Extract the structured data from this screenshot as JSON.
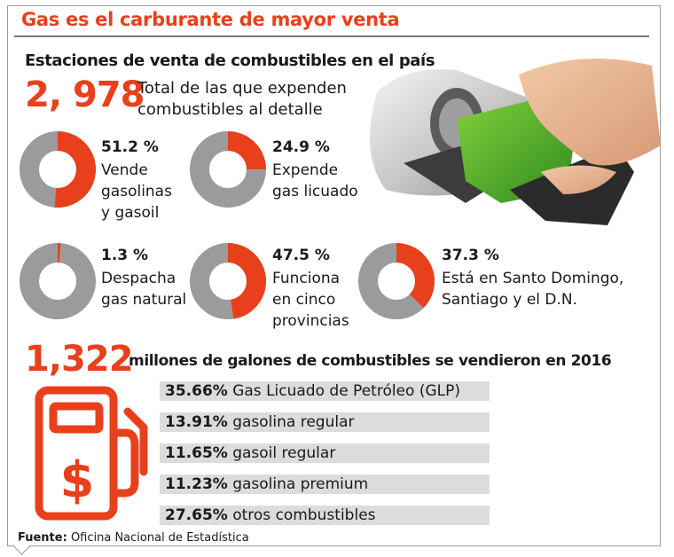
{
  "title": "Gas es el carburante de mayor venta",
  "subtitle": "Estaciones de venta de combustibles en el país",
  "total_stations": {
    "value": "2, 978",
    "text_line1": "Total  de las que expenden",
    "text_line2": "combustibles al detalle"
  },
  "gallons": {
    "value": "1,322",
    "text": "millones de galones de combustibles se vendieron en 2016"
  },
  "source": {
    "key": "Fuente:",
    "value": "Oficina Nacional de Estadística"
  },
  "colors": {
    "accent": "#e8401c",
    "donut_gray": "#9b9b9b",
    "bar_bg": "#dcdcdc"
  },
  "icons": [
    "fuel-nozzle-photo",
    "fuel-pump-icon"
  ],
  "chart_data": [
    {
      "type": "pie",
      "series": [
        {
          "label_value": "51.2 %",
          "value": 51.2,
          "lines": [
            "Vende",
            "gasolinas",
            "y gasoil"
          ]
        },
        {
          "label_value": "24.9 %",
          "value": 24.9,
          "lines": [
            "Expende",
            "gas licuado"
          ]
        },
        {
          "label_value": "1.3 %",
          "value": 1.3,
          "lines": [
            "Despacha",
            "gas natural"
          ]
        },
        {
          "label_value": "47.5 %",
          "value": 47.5,
          "lines": [
            "Funciona",
            "en cinco",
            "provincias"
          ]
        },
        {
          "label_value": "37.3 %",
          "value": 37.3,
          "lines": [
            "Está en Santo Domingo,",
            "Santiago y el D.N."
          ]
        }
      ]
    },
    {
      "type": "bar",
      "categories": [
        "Gas Licuado de Petróleo (GLP)",
        "gasolina regular",
        "gasoil regular",
        "gasolina premium",
        "otros combustibles"
      ],
      "values": [
        35.66,
        13.91,
        11.65,
        11.23,
        27.65
      ],
      "value_labels": [
        "35.66%",
        "13.91%",
        "11.65%",
        "11.23%",
        "27.65%"
      ]
    }
  ]
}
